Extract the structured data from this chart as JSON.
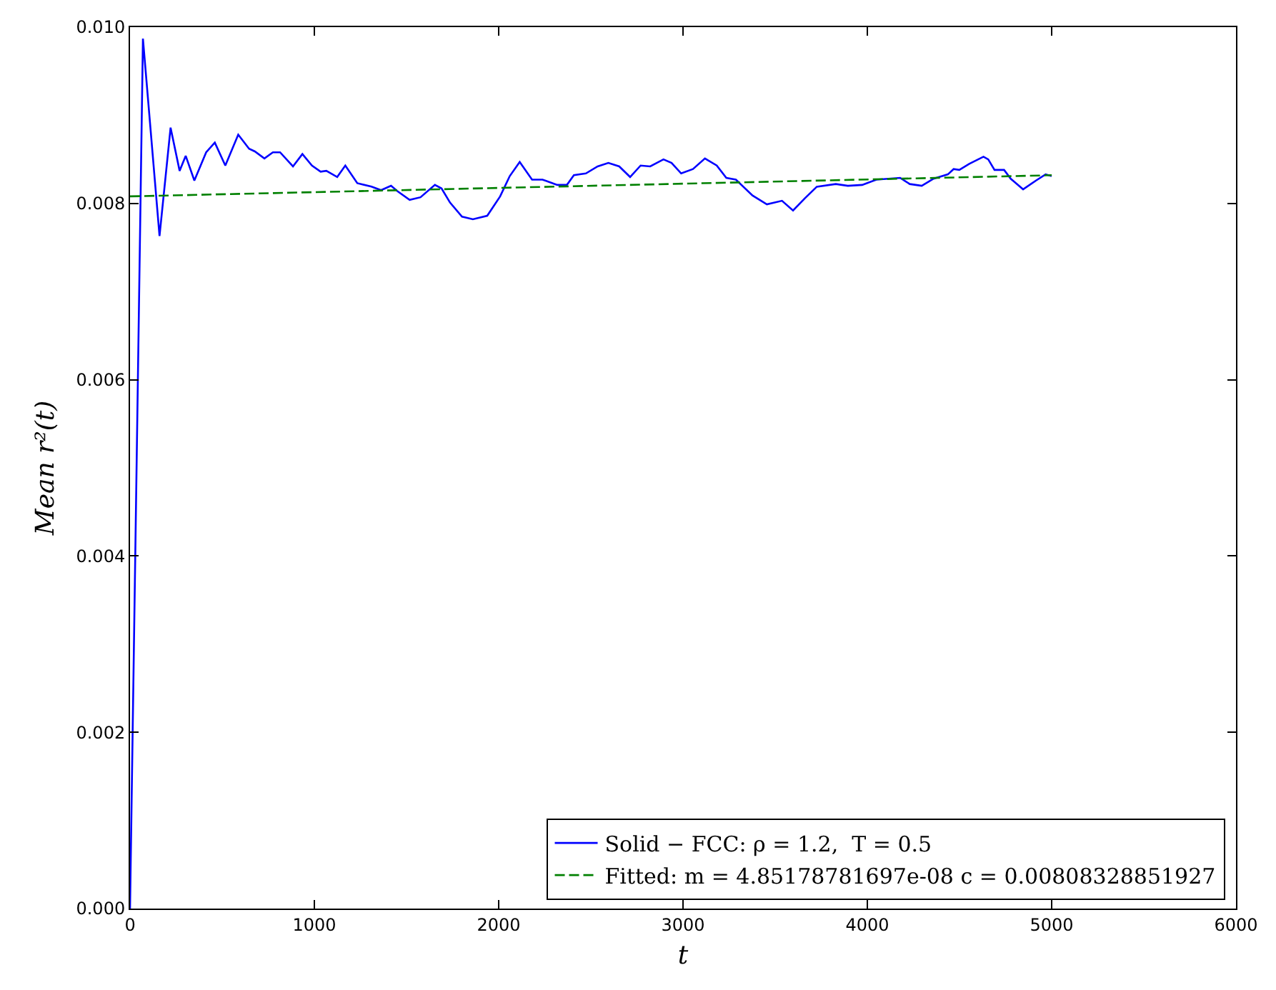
{
  "chart_data": {
    "type": "line",
    "xlabel": "t",
    "ylabel": "Mean r²(t)",
    "xlim": [
      0,
      6000
    ],
    "xticks": [
      0,
      1000,
      2000,
      3000,
      4000,
      5000,
      6000
    ],
    "ylim": [
      0,
      0.01
    ],
    "yticks": [
      {
        "value": 0,
        "label": "0.000"
      },
      {
        "value": 0.002,
        "label": "0.002"
      },
      {
        "value": 0.004,
        "label": "0.004"
      },
      {
        "value": 0.006,
        "label": "0.006"
      },
      {
        "value": 0.008,
        "label": "0.008"
      },
      {
        "value": 0.01,
        "label": "0.010"
      }
    ],
    "legend": "bottom right",
    "series": [
      {
        "name": "Solid − FCC: ρ = 1.2,  T = 0.5",
        "color": "#0000ff",
        "line_style": "solid",
        "x": [
          0,
          70,
          160,
          220,
          269,
          302,
          349,
          413,
          460,
          517,
          587,
          646,
          677,
          729,
          775,
          814,
          884,
          935,
          987,
          1034,
          1065,
          1124,
          1168,
          1233,
          1310,
          1362,
          1416,
          1450,
          1517,
          1576,
          1654,
          1690,
          1736,
          1801,
          1860,
          1938,
          2008,
          2060,
          2114,
          2181,
          2238,
          2318,
          2370,
          2408,
          2473,
          2537,
          2595,
          2654,
          2713,
          2770,
          2822,
          2894,
          2938,
          2990,
          3054,
          3119,
          3183,
          3235,
          3287,
          3377,
          3455,
          3537,
          3597,
          3662,
          3726,
          3829,
          3894,
          3972,
          4049,
          4178,
          4230,
          4295,
          4359,
          4437,
          4468,
          4499,
          4553,
          4630,
          4656,
          4690,
          4742,
          4778,
          4845,
          4915,
          4967,
          5000
        ],
        "values": [
          0,
          0.00987,
          0.00763,
          0.00886,
          0.00837,
          0.00854,
          0.00826,
          0.00858,
          0.00869,
          0.00843,
          0.00878,
          0.00862,
          0.00859,
          0.00851,
          0.00858,
          0.00858,
          0.00842,
          0.00856,
          0.00843,
          0.00836,
          0.00837,
          0.0083,
          0.00843,
          0.00823,
          0.00819,
          0.00815,
          0.0082,
          0.00814,
          0.00804,
          0.00807,
          0.00821,
          0.00817,
          0.00801,
          0.00785,
          0.00782,
          0.00786,
          0.00808,
          0.00831,
          0.00847,
          0.00827,
          0.00827,
          0.00821,
          0.00821,
          0.00832,
          0.00834,
          0.00842,
          0.00846,
          0.00842,
          0.0083,
          0.00843,
          0.00842,
          0.0085,
          0.00846,
          0.00834,
          0.00839,
          0.00851,
          0.00843,
          0.00829,
          0.00827,
          0.00809,
          0.00799,
          0.00803,
          0.00792,
          0.00806,
          0.00819,
          0.00822,
          0.0082,
          0.00821,
          0.00827,
          0.00829,
          0.00822,
          0.0082,
          0.00828,
          0.00833,
          0.00839,
          0.00838,
          0.00845,
          0.00853,
          0.0085,
          0.00838,
          0.00838,
          0.00828,
          0.00816,
          0.00826,
          0.00833,
          0.00831
        ]
      },
      {
        "name": "Fitted: m = 4.85178781697e-08 c = 0.00808328851927",
        "color": "#008000",
        "line_style": "dashed",
        "x": [
          0,
          5000
        ],
        "values": [
          0.00808,
          0.00832
        ]
      }
    ]
  }
}
